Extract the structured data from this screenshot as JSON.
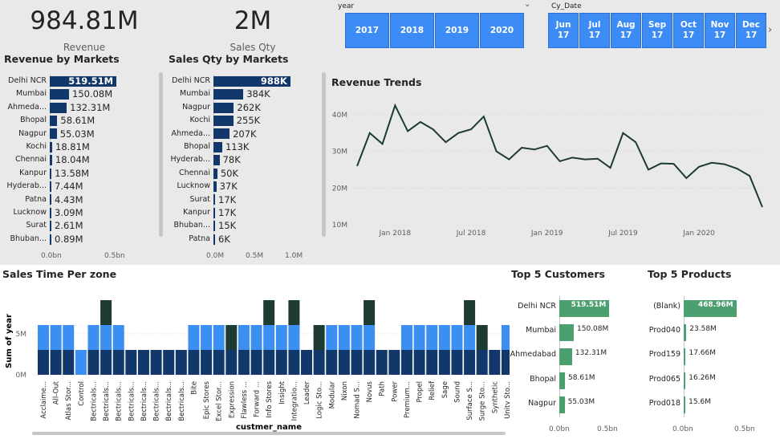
{
  "cards": {
    "revenue": {
      "value": "984.81M",
      "label": "Revenue"
    },
    "sales_qty": {
      "value": "2M",
      "label": "Sales Qty"
    }
  },
  "slicers": {
    "year": {
      "label": "year",
      "options": [
        "2017",
        "2018",
        "2019",
        "2020"
      ]
    },
    "cy_date": {
      "label": "Cy_Date",
      "options": [
        [
          "Jun",
          "17"
        ],
        [
          "Jul",
          "17"
        ],
        [
          "Aug",
          "17"
        ],
        [
          "Sep",
          "17"
        ],
        [
          "Oct",
          "17"
        ],
        [
          "Nov",
          "17"
        ],
        [
          "Dec",
          "17"
        ]
      ]
    }
  },
  "colors": {
    "bar_dark": "#12386b",
    "bar_mid": "#3b8ef2",
    "bar_darkest": "#1d3a33",
    "bar_green": "#4c9f6e",
    "slicer": "#3d8bf5",
    "line": "#1d3a33"
  },
  "chart_data": [
    {
      "type": "bar",
      "title": "Revenue by Markets",
      "categories": [
        "Delhi NCR",
        "Mumbai",
        "Ahmeda...",
        "Bhopal",
        "Nagpur",
        "Kochi",
        "Chennai",
        "Kanpur",
        "Hyderab...",
        "Patna",
        "Lucknow",
        "Surat",
        "Bhuban..."
      ],
      "values": [
        519.51,
        150.08,
        132.31,
        58.61,
        55.03,
        18.81,
        18.04,
        13.58,
        7.44,
        4.43,
        3.09,
        2.61,
        0.89
      ],
      "value_labels": [
        "519.51M",
        "150.08M",
        "132.31M",
        "58.61M",
        "55.03M",
        "18.81M",
        "18.04M",
        "13.58M",
        "7.44M",
        "4.43M",
        "3.09M",
        "2.61M",
        "0.89M"
      ],
      "xticks": [
        "0.0bn",
        "0.5bn"
      ],
      "xlim": [
        0,
        600
      ]
    },
    {
      "type": "bar",
      "title": "Sales Qty by Markets",
      "categories": [
        "Delhi NCR",
        "Mumbai",
        "Nagpur",
        "Kochi",
        "Ahmeda...",
        "Bhopal",
        "Hyderab...",
        "Chennai",
        "Lucknow",
        "Surat",
        "Kanpur",
        "Bhuban...",
        "Patna"
      ],
      "values": [
        988,
        384,
        262,
        255,
        207,
        113,
        78,
        50,
        37,
        17,
        17,
        15,
        6
      ],
      "value_labels": [
        "988K",
        "384K",
        "262K",
        "255K",
        "207K",
        "113K",
        "78K",
        "50K",
        "37K",
        "17K",
        "17K",
        "15K",
        "6K"
      ],
      "xticks": [
        "0.0M",
        "0.5M",
        "1.0M"
      ],
      "xlim": [
        0,
        1000
      ]
    },
    {
      "type": "line",
      "title": "Revenue Trends",
      "x": [
        "2017-10",
        "2017-11",
        "2017-12",
        "2018-01",
        "2018-02",
        "2018-03",
        "2018-04",
        "2018-05",
        "2018-06",
        "2018-07",
        "2018-08",
        "2018-09",
        "2018-10",
        "2018-11",
        "2018-12",
        "2019-01",
        "2019-02",
        "2019-03",
        "2019-04",
        "2019-05",
        "2019-06",
        "2019-07",
        "2019-08",
        "2019-09",
        "2019-10",
        "2019-11",
        "2019-12",
        "2020-01",
        "2020-02",
        "2020-03",
        "2020-04",
        "2020-05",
        "2020-06"
      ],
      "values": [
        26,
        35,
        32,
        42.5,
        35.5,
        38,
        36,
        32.5,
        35,
        36,
        39.5,
        30,
        27.8,
        31,
        30.5,
        31.5,
        27.3,
        28.3,
        27.8,
        28,
        25.5,
        35,
        32.5,
        25,
        26.7,
        26.6,
        22.7,
        25.8,
        26.9,
        26.5,
        25.3,
        23.3,
        14.8
      ],
      "yticks": [
        "10M",
        "20M",
        "30M",
        "40M"
      ],
      "xticks": [
        "Jan 2018",
        "Jul 2018",
        "Jan 2019",
        "Jul 2019",
        "Jan 2020"
      ],
      "ylim": [
        10,
        45
      ]
    },
    {
      "type": "bar",
      "title": "Sales Time Per zone",
      "xlabel": "custmer_name",
      "ylabel": "Sum of year",
      "categories": [
        "Acclaime...",
        "All-Out",
        "Atlas Stor...",
        "Control",
        "Bectricals...",
        "Bectricals...",
        "Bectricals...",
        "Bectricals...",
        "Bectricals...",
        "Bectricals...",
        "Bectricals...",
        "Bectricals...",
        "Bite",
        "Epic Stores",
        "Excel Stor...",
        "Expression",
        "Flawless ...",
        "Forward ...",
        "Info Stores",
        "Insight",
        "Integratio...",
        "Leader",
        "Logic Sto...",
        "Modular",
        "Nixon",
        "Nomad S...",
        "Novus",
        "Path",
        "Power",
        "Premium...",
        "Propel",
        "Relief",
        "Sage",
        "Sound",
        "Surface S...",
        "Surge Sto...",
        "Synthetic",
        "Unity Sto..."
      ],
      "series": [
        {
          "values": [
            2,
            2,
            2,
            0,
            2,
            2,
            2,
            2,
            2,
            2,
            2,
            2,
            2,
            2,
            2,
            2,
            2,
            2,
            2,
            2,
            2,
            2,
            2,
            2,
            2,
            2,
            2,
            2,
            2,
            2,
            2,
            2,
            2,
            2,
            2,
            2,
            2,
            2
          ]
        },
        {
          "values": [
            2,
            2,
            2,
            2,
            2,
            2,
            2,
            0,
            0,
            0,
            0,
            0,
            2,
            2,
            2,
            0,
            2,
            2,
            2,
            2,
            2,
            0,
            0,
            2,
            2,
            2,
            2,
            0,
            0,
            2,
            2,
            2,
            2,
            2,
            2,
            0,
            0,
            2
          ]
        },
        {
          "values": [
            0,
            0,
            0,
            0,
            0,
            2,
            0,
            0,
            0,
            0,
            0,
            0,
            0,
            0,
            0,
            2,
            0,
            0,
            2,
            0,
            2,
            0,
            2,
            0,
            0,
            0,
            2,
            0,
            0,
            0,
            0,
            0,
            0,
            0,
            2,
            2,
            0,
            0
          ]
        }
      ],
      "yticks": [
        "0M",
        "5M"
      ]
    },
    {
      "type": "bar",
      "title": "Top 5 Customers",
      "categories": [
        "Delhi NCR",
        "Mumbai",
        "Ahmedabad",
        "Bhopal",
        "Nagpur"
      ],
      "values": [
        519.51,
        150.08,
        132.31,
        58.61,
        55.03
      ],
      "value_labels": [
        "519.51M",
        "150.08M",
        "132.31M",
        "58.61M",
        "55.03M"
      ],
      "xticks": [
        "0.0bn",
        "0.5bn"
      ],
      "xlim": [
        0,
        600
      ]
    },
    {
      "type": "bar",
      "title": "Top 5 Products",
      "categories": [
        "(Blank)",
        "Prod040",
        "Prod159",
        "Prod065",
        "Prod018"
      ],
      "values": [
        468.96,
        23.58,
        17.66,
        16.26,
        15.6
      ],
      "value_labels": [
        "468.96M",
        "23.58M",
        "17.66M",
        "16.26M",
        "15.6M"
      ],
      "xticks": [
        "0.0bn",
        "0.5bn"
      ],
      "xlim": [
        0,
        600
      ]
    }
  ]
}
